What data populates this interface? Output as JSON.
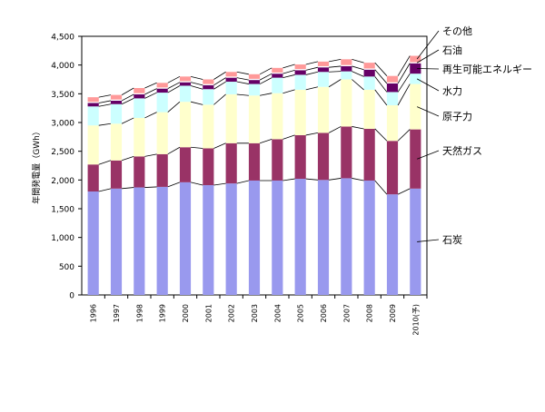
{
  "chart_data": {
    "type": "bar",
    "stacked": true,
    "ylabel": "年間発電量（GWh）",
    "ylim": [
      0,
      4500
    ],
    "yticks": [
      "0",
      "500",
      "1,000",
      "1,500",
      "2,000",
      "2,500",
      "3,000",
      "3,500",
      "4,000",
      "4,500"
    ],
    "grid": false,
    "legend_placement": "right",
    "categories": [
      "1996",
      "1997",
      "1998",
      "1999",
      "2000",
      "2001",
      "2002",
      "2003",
      "2004",
      "2005",
      "2006",
      "2007",
      "2008",
      "2009",
      "2010(予)"
    ],
    "series": [
      {
        "name": "石炭",
        "color": "#9999ee",
        "values": [
          1800,
          1850,
          1870,
          1880,
          1960,
          1910,
          1940,
          1990,
          1990,
          2020,
          2000,
          2030,
          1990,
          1750,
          1850
        ]
      },
      {
        "name": "天然ガス",
        "color": "#993366",
        "values": [
          470,
          490,
          540,
          570,
          610,
          640,
          700,
          650,
          720,
          760,
          820,
          900,
          900,
          930,
          1030
        ]
      },
      {
        "name": "原子力",
        "color": "#ffffcc",
        "values": [
          680,
          640,
          670,
          730,
          790,
          760,
          850,
          830,
          800,
          790,
          800,
          820,
          680,
          620,
          790
        ]
      },
      {
        "name": "水力",
        "color": "#ccffff",
        "values": [
          330,
          340,
          340,
          340,
          280,
          270,
          220,
          200,
          270,
          260,
          260,
          140,
          230,
          230,
          180
        ]
      },
      {
        "name": "再生可能エネルギー",
        "color": "#660066",
        "values": [
          60,
          60,
          70,
          70,
          60,
          70,
          70,
          70,
          70,
          80,
          80,
          90,
          120,
          150,
          180
        ]
      },
      {
        "name": "石油",
        "color": "#ffffff",
        "values": [
          20,
          20,
          20,
          20,
          20,
          20,
          20,
          20,
          20,
          20,
          20,
          20,
          20,
          20,
          20
        ]
      },
      {
        "name": "その他",
        "color": "#ff9999",
        "values": [
          80,
          80,
          90,
          80,
          80,
          80,
          80,
          80,
          80,
          80,
          80,
          100,
          100,
          110,
          110
        ]
      }
    ]
  }
}
